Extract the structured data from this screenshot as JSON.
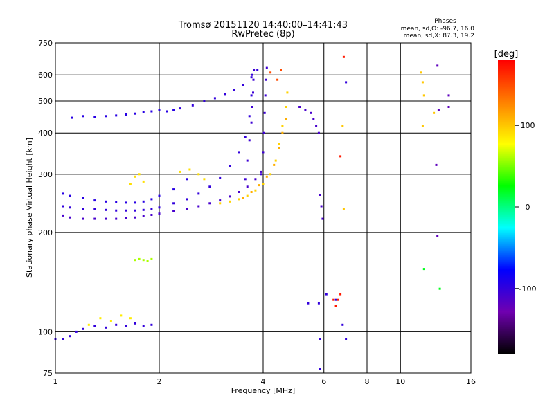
{
  "chart_data": {
    "type": "scatter",
    "title": "Tromsø 20151120 14:40:00–14:41:43",
    "subtitle": "RwPretec (8p)",
    "xlabel": "Frequency [MHz]",
    "ylabel": "Stationary phase Virtual Height [km]",
    "x_scale": "log",
    "y_scale": "log",
    "xlim": [
      1,
      16
    ],
    "ylim": [
      75,
      750
    ],
    "x_ticks": [
      1,
      2,
      4,
      6,
      8,
      10,
      16
    ],
    "y_ticks": [
      75,
      100,
      200,
      300,
      400,
      500,
      600,
      750
    ],
    "grid": true,
    "phase_header": "Phases",
    "phase_stats": [
      "mean, sd,O: -96.7, 16.0",
      "mean, sd,X:  87.3, 19.2"
    ],
    "colorbar": {
      "label": "[deg]",
      "min": -180,
      "max": 180,
      "ticks": [
        100,
        0,
        -100
      ],
      "colors": [
        "#ff0000",
        "#ff8000",
        "#ffff00",
        "#00ff00",
        "#00ffff",
        "#0000ff",
        "#7000b0",
        "#000000"
      ]
    },
    "traces": [
      {
        "phase": -95,
        "points": [
          [
            1.12,
            445
          ],
          [
            1.2,
            450
          ],
          [
            1.3,
            448
          ],
          [
            1.4,
            450
          ],
          [
            1.5,
            452
          ],
          [
            1.6,
            455
          ],
          [
            1.7,
            458
          ],
          [
            1.8,
            462
          ],
          [
            1.9,
            465
          ],
          [
            2.0,
            470
          ],
          [
            2.1,
            465
          ],
          [
            2.2,
            470
          ]
        ]
      },
      {
        "phase": -100,
        "points": [
          [
            2.3,
            475
          ],
          [
            2.5,
            485
          ],
          [
            2.7,
            500
          ],
          [
            2.9,
            510
          ],
          [
            3.1,
            525
          ],
          [
            3.3,
            540
          ],
          [
            3.5,
            560
          ],
          [
            3.7,
            590
          ],
          [
            3.85,
            620
          ]
        ]
      },
      {
        "phase": -110,
        "points": [
          [
            1.05,
            225
          ],
          [
            1.1,
            222
          ],
          [
            1.2,
            220
          ],
          [
            1.3,
            220
          ],
          [
            1.4,
            220
          ],
          [
            1.5,
            220
          ],
          [
            1.6,
            221
          ],
          [
            1.7,
            222
          ],
          [
            1.8,
            224
          ],
          [
            1.9,
            226
          ],
          [
            2.0,
            228
          ],
          [
            2.2,
            232
          ],
          [
            2.4,
            236
          ],
          [
            2.6,
            240
          ],
          [
            2.8,
            245
          ],
          [
            3.0,
            250
          ],
          [
            3.2,
            257
          ],
          [
            3.4,
            265
          ],
          [
            3.6,
            275
          ],
          [
            3.8,
            290
          ],
          [
            3.95,
            305
          ]
        ]
      },
      {
        "phase": -100,
        "points": [
          [
            1.05,
            240
          ],
          [
            1.1,
            238
          ],
          [
            1.2,
            236
          ],
          [
            1.3,
            235
          ],
          [
            1.4,
            234
          ],
          [
            1.5,
            233
          ],
          [
            1.6,
            233
          ],
          [
            1.7,
            233
          ],
          [
            1.8,
            234
          ],
          [
            1.9,
            236
          ],
          [
            2.0,
            238
          ],
          [
            2.2,
            245
          ],
          [
            2.4,
            252
          ],
          [
            2.6,
            262
          ],
          [
            2.8,
            275
          ],
          [
            3.0,
            292
          ],
          [
            3.2,
            318
          ],
          [
            3.4,
            350
          ],
          [
            3.55,
            390
          ],
          [
            3.65,
            450
          ],
          [
            3.7,
            520
          ],
          [
            3.72,
            600
          ]
        ]
      },
      {
        "phase": -95,
        "points": [
          [
            1.05,
            262
          ],
          [
            1.1,
            258
          ],
          [
            1.2,
            255
          ],
          [
            1.3,
            250
          ],
          [
            1.4,
            248
          ],
          [
            1.5,
            247
          ],
          [
            1.6,
            246
          ],
          [
            1.7,
            246
          ],
          [
            1.8,
            248
          ],
          [
            1.9,
            252
          ],
          [
            2.0,
            258
          ],
          [
            2.2,
            270
          ],
          [
            2.4,
            290
          ]
        ]
      },
      {
        "phase": -105,
        "points": [
          [
            3.55,
            290
          ],
          [
            3.6,
            330
          ],
          [
            3.65,
            380
          ],
          [
            3.7,
            430
          ],
          [
            3.72,
            480
          ],
          [
            3.74,
            530
          ],
          [
            3.75,
            580
          ],
          [
            3.76,
            620
          ],
          [
            3.95,
            300
          ],
          [
            4.0,
            350
          ],
          [
            4.02,
            400
          ],
          [
            4.04,
            460
          ],
          [
            4.06,
            520
          ],
          [
            4.08,
            580
          ],
          [
            4.1,
            630
          ]
        ]
      },
      {
        "phase": 95,
        "points": [
          [
            3.0,
            245
          ],
          [
            3.2,
            248
          ],
          [
            3.4,
            252
          ],
          [
            3.6,
            258
          ],
          [
            3.8,
            268
          ],
          [
            4.0,
            280
          ],
          [
            4.2,
            300
          ],
          [
            4.35,
            330
          ],
          [
            4.45,
            370
          ],
          [
            4.55,
            420
          ],
          [
            4.65,
            480
          ],
          [
            4.7,
            530
          ]
        ]
      },
      {
        "phase": 110,
        "points": [
          [
            3.5,
            255
          ],
          [
            3.7,
            265
          ],
          [
            3.9,
            278
          ],
          [
            4.1,
            295
          ],
          [
            4.3,
            320
          ],
          [
            4.45,
            360
          ],
          [
            4.55,
            400
          ],
          [
            4.65,
            440
          ]
        ]
      },
      {
        "phase": 150,
        "points": [
          [
            4.4,
            580
          ],
          [
            4.5,
            620
          ],
          [
            4.2,
            610
          ]
        ]
      },
      {
        "phase": -100,
        "points": [
          [
            1.0,
            95
          ],
          [
            1.05,
            95
          ],
          [
            1.1,
            97
          ],
          [
            1.15,
            100
          ],
          [
            1.2,
            102
          ],
          [
            1.3,
            104
          ],
          [
            1.4,
            103
          ],
          [
            1.5,
            105
          ],
          [
            1.6,
            104
          ],
          [
            1.7,
            106
          ],
          [
            1.8,
            104
          ],
          [
            1.9,
            105
          ]
        ]
      },
      {
        "phase": 85,
        "points": [
          [
            1.25,
            105
          ],
          [
            1.35,
            110
          ],
          [
            1.45,
            108
          ],
          [
            1.55,
            112
          ],
          [
            1.65,
            110
          ]
        ]
      },
      {
        "phase": 60,
        "points": [
          [
            1.7,
            165
          ],
          [
            1.75,
            166
          ],
          [
            1.8,
            165
          ],
          [
            1.85,
            164
          ],
          [
            1.9,
            166
          ]
        ]
      },
      {
        "phase": 90,
        "points": [
          [
            1.65,
            280
          ],
          [
            1.7,
            295
          ],
          [
            1.75,
            300
          ],
          [
            1.8,
            285
          ],
          [
            2.3,
            305
          ],
          [
            2.45,
            310
          ],
          [
            2.6,
            300
          ],
          [
            2.7,
            290
          ]
        ]
      },
      {
        "phase": -110,
        "points": [
          [
            5.1,
            480
          ],
          [
            5.3,
            470
          ],
          [
            5.5,
            460
          ],
          [
            5.6,
            440
          ],
          [
            5.7,
            420
          ],
          [
            5.8,
            400
          ],
          [
            5.85,
            260
          ],
          [
            5.9,
            240
          ],
          [
            5.95,
            220
          ]
        ]
      },
      {
        "phase": -100,
        "points": [
          [
            5.4,
            122
          ],
          [
            5.8,
            122
          ],
          [
            6.1,
            130
          ],
          [
            6.5,
            125
          ],
          [
            6.8,
            105
          ],
          [
            6.95,
            95
          ],
          [
            5.85,
            95
          ],
          [
            5.85,
            77
          ],
          [
            6.95,
            570
          ]
        ]
      },
      {
        "phase": 170,
        "points": [
          [
            6.4,
            125
          ],
          [
            6.5,
            120
          ],
          [
            6.6,
            125
          ],
          [
            6.7,
            130
          ],
          [
            6.7,
            340
          ],
          [
            6.85,
            680
          ]
        ]
      },
      {
        "phase": 100,
        "points": [
          [
            6.8,
            420
          ],
          [
            6.85,
            235
          ],
          [
            11.5,
            610
          ],
          [
            11.6,
            570
          ],
          [
            11.7,
            520
          ],
          [
            12.5,
            460
          ],
          [
            11.6,
            420
          ]
        ]
      },
      {
        "phase": -120,
        "points": [
          [
            12.8,
            640
          ],
          [
            12.9,
            470
          ],
          [
            13.8,
            480
          ],
          [
            13.8,
            520
          ],
          [
            12.7,
            320
          ],
          [
            12.8,
            195
          ]
        ]
      },
      {
        "phase": 20,
        "points": [
          [
            13.0,
            135
          ],
          [
            11.7,
            155
          ]
        ]
      }
    ]
  }
}
